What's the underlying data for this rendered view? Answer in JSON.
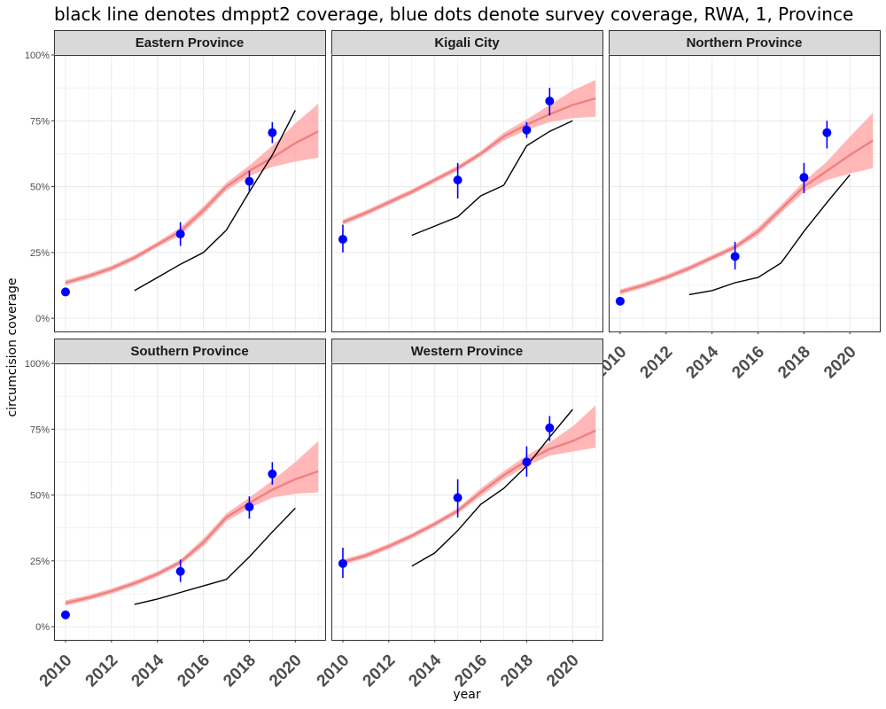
{
  "title": "black line denotes dmppt2 coverage, blue dots denote survey coverage, RWA, 1, Province",
  "colors": {
    "model_line": "#f08080",
    "model_band": "#ffaaaa",
    "dmppt2_line": "#000000",
    "survey_points": "#0000ff",
    "strip_fill": "#d9d9d9",
    "grid": "#ebebeb"
  },
  "chart_data": {
    "type": "line",
    "title": "black line denotes dmppt2 coverage, blue dots denote survey coverage, RWA, 1, Province",
    "xlabel": "year",
    "ylabel": "circumcision coverage",
    "xlim": [
      2009.5,
      2021.3
    ],
    "ylim": [
      -0.05,
      1.0
    ],
    "x_ticks": [
      2010,
      2012,
      2014,
      2016,
      2018,
      2020
    ],
    "x_tick_labels": [
      "2010",
      "2012",
      "2014",
      "2016",
      "2018",
      "2020"
    ],
    "y_ticks": [
      0,
      0.25,
      0.5,
      0.75,
      1.0
    ],
    "y_tick_labels": [
      "0%",
      "25%",
      "50%",
      "75%",
      "100%"
    ],
    "grid": true,
    "facets": [
      {
        "name": "Eastern Province",
        "model": {
          "x": [
            2010,
            2011,
            2012,
            2013,
            2014,
            2015,
            2016,
            2017,
            2018,
            2019,
            2020,
            2021
          ],
          "mean": [
            0.135,
            0.16,
            0.19,
            0.23,
            0.28,
            0.33,
            0.41,
            0.5,
            0.56,
            0.61,
            0.665,
            0.71
          ],
          "lower": [
            0.125,
            0.15,
            0.18,
            0.22,
            0.27,
            0.315,
            0.395,
            0.485,
            0.54,
            0.575,
            0.595,
            0.61
          ],
          "upper": [
            0.145,
            0.17,
            0.2,
            0.24,
            0.29,
            0.345,
            0.425,
            0.515,
            0.58,
            0.655,
            0.74,
            0.815
          ]
        },
        "dmppt2": {
          "x": [
            2013,
            2014,
            2015,
            2016,
            2017,
            2018,
            2019,
            2020
          ],
          "y": [
            0.105,
            0.155,
            0.205,
            0.25,
            0.335,
            0.48,
            0.62,
            0.79
          ]
        },
        "survey": [
          {
            "x": 2010,
            "y": 0.1,
            "lo": 0.085,
            "hi": 0.115
          },
          {
            "x": 2015,
            "y": 0.32,
            "lo": 0.275,
            "hi": 0.365
          },
          {
            "x": 2018,
            "y": 0.52,
            "lo": 0.48,
            "hi": 0.56
          },
          {
            "x": 2019,
            "y": 0.705,
            "lo": 0.665,
            "hi": 0.745
          }
        ]
      },
      {
        "name": "Kigali City",
        "model": {
          "x": [
            2010,
            2011,
            2012,
            2013,
            2014,
            2015,
            2016,
            2017,
            2018,
            2019,
            2020,
            2021
          ],
          "mean": [
            0.365,
            0.4,
            0.44,
            0.48,
            0.525,
            0.57,
            0.625,
            0.69,
            0.735,
            0.775,
            0.81,
            0.835
          ],
          "lower": [
            0.355,
            0.39,
            0.43,
            0.47,
            0.515,
            0.56,
            0.615,
            0.675,
            0.715,
            0.745,
            0.76,
            0.765
          ],
          "upper": [
            0.375,
            0.41,
            0.45,
            0.49,
            0.535,
            0.58,
            0.635,
            0.705,
            0.755,
            0.81,
            0.865,
            0.905
          ]
        },
        "dmppt2": {
          "x": [
            2013,
            2014,
            2015,
            2016,
            2017,
            2018,
            2019,
            2020
          ],
          "y": [
            0.315,
            0.35,
            0.385,
            0.465,
            0.505,
            0.655,
            0.71,
            0.75
          ]
        },
        "survey": [
          {
            "x": 2010,
            "y": 0.3,
            "lo": 0.25,
            "hi": 0.355
          },
          {
            "x": 2015,
            "y": 0.525,
            "lo": 0.455,
            "hi": 0.59
          },
          {
            "x": 2018,
            "y": 0.715,
            "lo": 0.685,
            "hi": 0.745
          },
          {
            "x": 2019,
            "y": 0.825,
            "lo": 0.77,
            "hi": 0.875
          }
        ]
      },
      {
        "name": "Northern Province",
        "model": {
          "x": [
            2010,
            2011,
            2012,
            2013,
            2014,
            2015,
            2016,
            2017,
            2018,
            2019,
            2020,
            2021
          ],
          "mean": [
            0.1,
            0.125,
            0.155,
            0.19,
            0.23,
            0.27,
            0.33,
            0.415,
            0.5,
            0.56,
            0.62,
            0.675
          ],
          "lower": [
            0.09,
            0.115,
            0.145,
            0.18,
            0.22,
            0.26,
            0.315,
            0.4,
            0.48,
            0.525,
            0.55,
            0.57
          ],
          "upper": [
            0.11,
            0.135,
            0.165,
            0.2,
            0.24,
            0.28,
            0.345,
            0.43,
            0.52,
            0.595,
            0.69,
            0.78
          ]
        },
        "dmppt2": {
          "x": [
            2013,
            2014,
            2015,
            2016,
            2017,
            2018,
            2019,
            2020
          ],
          "y": [
            0.09,
            0.105,
            0.135,
            0.155,
            0.21,
            0.33,
            0.44,
            0.545
          ]
        },
        "survey": [
          {
            "x": 2010,
            "y": 0.065,
            "lo": 0.05,
            "hi": 0.08
          },
          {
            "x": 2015,
            "y": 0.235,
            "lo": 0.185,
            "hi": 0.29
          },
          {
            "x": 2018,
            "y": 0.535,
            "lo": 0.475,
            "hi": 0.59
          },
          {
            "x": 2019,
            "y": 0.705,
            "lo": 0.645,
            "hi": 0.75
          }
        ]
      },
      {
        "name": "Southern Province",
        "model": {
          "x": [
            2010,
            2011,
            2012,
            2013,
            2014,
            2015,
            2016,
            2017,
            2018,
            2019,
            2020,
            2021
          ],
          "mean": [
            0.09,
            0.11,
            0.135,
            0.165,
            0.2,
            0.245,
            0.32,
            0.415,
            0.47,
            0.52,
            0.56,
            0.59
          ],
          "lower": [
            0.08,
            0.1,
            0.125,
            0.155,
            0.19,
            0.235,
            0.305,
            0.4,
            0.45,
            0.49,
            0.505,
            0.51
          ],
          "upper": [
            0.1,
            0.12,
            0.145,
            0.175,
            0.21,
            0.255,
            0.335,
            0.43,
            0.49,
            0.555,
            0.625,
            0.705
          ]
        },
        "dmppt2": {
          "x": [
            2013,
            2014,
            2015,
            2016,
            2017,
            2018,
            2019,
            2020
          ],
          "y": [
            0.085,
            0.105,
            0.13,
            0.155,
            0.18,
            0.265,
            0.36,
            0.45
          ]
        },
        "survey": [
          {
            "x": 2010,
            "y": 0.045,
            "lo": 0.035,
            "hi": 0.055
          },
          {
            "x": 2015,
            "y": 0.21,
            "lo": 0.17,
            "hi": 0.255
          },
          {
            "x": 2018,
            "y": 0.455,
            "lo": 0.41,
            "hi": 0.495
          },
          {
            "x": 2019,
            "y": 0.58,
            "lo": 0.54,
            "hi": 0.625
          }
        ]
      },
      {
        "name": "Western Province",
        "model": {
          "x": [
            2010,
            2011,
            2012,
            2013,
            2014,
            2015,
            2016,
            2017,
            2018,
            2019,
            2020,
            2021
          ],
          "mean": [
            0.245,
            0.27,
            0.305,
            0.345,
            0.39,
            0.44,
            0.51,
            0.575,
            0.63,
            0.675,
            0.705,
            0.745
          ],
          "lower": [
            0.235,
            0.26,
            0.295,
            0.335,
            0.38,
            0.43,
            0.495,
            0.56,
            0.61,
            0.65,
            0.665,
            0.68
          ],
          "upper": [
            0.255,
            0.28,
            0.315,
            0.355,
            0.4,
            0.45,
            0.525,
            0.59,
            0.65,
            0.7,
            0.76,
            0.84
          ]
        },
        "dmppt2": {
          "x": [
            2013,
            2014,
            2015,
            2016,
            2017,
            2018,
            2019,
            2020
          ],
          "y": [
            0.23,
            0.28,
            0.365,
            0.465,
            0.525,
            0.61,
            0.72,
            0.825
          ]
        },
        "survey": [
          {
            "x": 2010,
            "y": 0.24,
            "lo": 0.185,
            "hi": 0.3
          },
          {
            "x": 2015,
            "y": 0.49,
            "lo": 0.415,
            "hi": 0.56
          },
          {
            "x": 2018,
            "y": 0.625,
            "lo": 0.57,
            "hi": 0.685
          },
          {
            "x": 2019,
            "y": 0.755,
            "lo": 0.705,
            "hi": 0.8
          }
        ]
      }
    ]
  }
}
